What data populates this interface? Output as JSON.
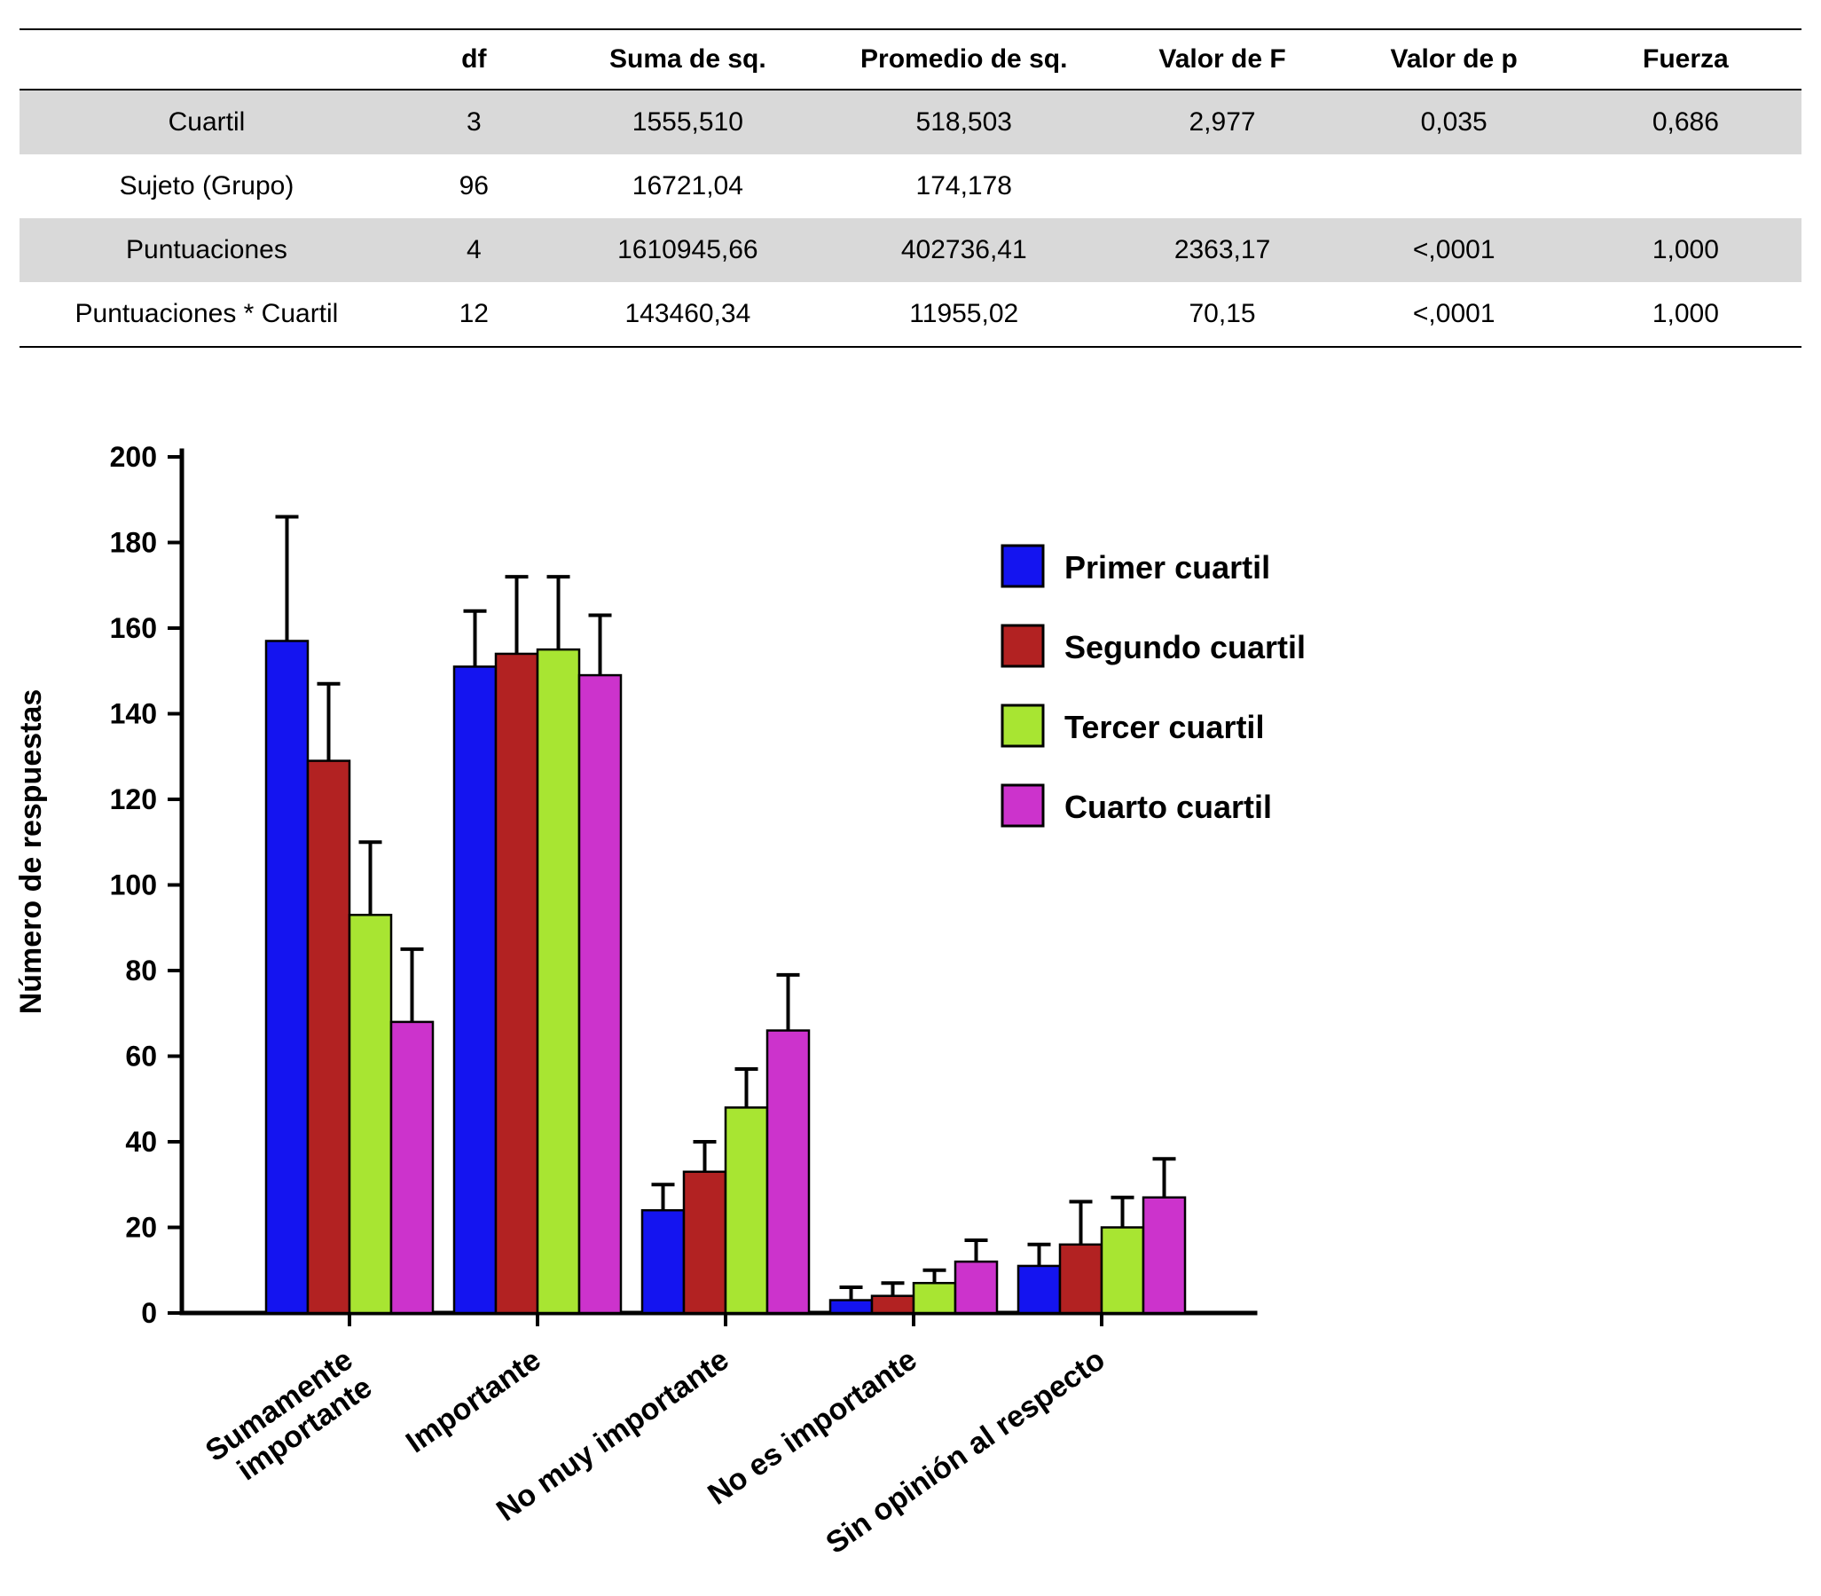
{
  "table": {
    "headers": [
      "",
      "df",
      "Suma de sq.",
      "Promedio de sq.",
      "Valor de F",
      "Valor de p",
      "Fuerza"
    ],
    "rows": [
      {
        "label": "Cuartil",
        "values": [
          "3",
          "1555,510",
          "518,503",
          "2,977",
          "0,035",
          "0,686"
        ]
      },
      {
        "label": "Sujeto (Grupo)",
        "values": [
          "96",
          "16721,04",
          "174,178",
          "",
          "",
          ""
        ]
      },
      {
        "label": "Puntuaciones",
        "values": [
          "4",
          "1610945,66",
          "402736,41",
          "2363,17",
          "<,0001",
          "1,000"
        ]
      },
      {
        "label": "Puntuaciones * Cuartil",
        "values": [
          "12",
          "143460,34",
          "11955,02",
          "70,15",
          "<,0001",
          "1,000"
        ]
      }
    ],
    "shaded_color": "#d9d9d9"
  },
  "chart_data": {
    "type": "bar",
    "title": "",
    "xlabel": "",
    "ylabel": "Número de respuestas",
    "ylim": [
      0,
      200
    ],
    "ytick_step": 20,
    "grid": false,
    "legend_position": "upper right inside",
    "categories": [
      "Sumamente\nimportante",
      "Importante",
      "No muy importante",
      "No es importante",
      "Sin opinión al respecto"
    ],
    "series": [
      {
        "name": "Primer cuartil",
        "color": "#1414f0",
        "values": [
          157,
          151,
          24,
          3,
          11
        ],
        "errors_upper": [
          29,
          13,
          6,
          3,
          5
        ]
      },
      {
        "name": "Segundo cuartil",
        "color": "#b22222",
        "values": [
          129,
          154,
          33,
          4,
          16
        ],
        "errors_upper": [
          18,
          18,
          7,
          3,
          10
        ]
      },
      {
        "name": "Tercer cuartil",
        "color": "#a8e532",
        "values": [
          93,
          155,
          48,
          7,
          20
        ],
        "errors_upper": [
          17,
          17,
          9,
          3,
          7
        ]
      },
      {
        "name": "Cuarto cuartil",
        "color": "#cc33cc",
        "values": [
          68,
          149,
          66,
          12,
          27
        ],
        "errors_upper": [
          17,
          14,
          13,
          5,
          9
        ]
      }
    ]
  }
}
